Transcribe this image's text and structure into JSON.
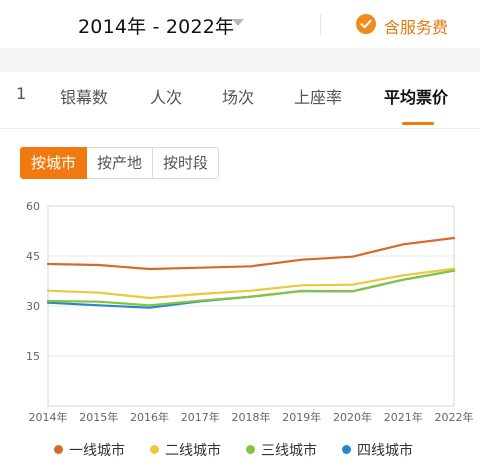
{
  "header": {
    "range_label": "2014年 - 2022年",
    "service_label": "含服务费"
  },
  "tabs": [
    {
      "label": "1"
    },
    {
      "label": "银幕数"
    },
    {
      "label": "人次"
    },
    {
      "label": "场次"
    },
    {
      "label": "上座率"
    },
    {
      "label": "平均票价"
    }
  ],
  "active_tab": "平均票价",
  "segments": [
    {
      "label": "按城市"
    },
    {
      "label": "按产地"
    },
    {
      "label": "按时段"
    }
  ],
  "active_segment": "按城市",
  "colors": {
    "accent": "#f07a10",
    "tier1": "#d9692a",
    "tier2": "#ecc83c",
    "tier3": "#86c43e",
    "tier4": "#2a86c8"
  },
  "chart_data": {
    "type": "line",
    "x": [
      "2014年",
      "2015年",
      "2016年",
      "2017年",
      "2018年",
      "2019年",
      "2020年",
      "2021年",
      "2022年"
    ],
    "y_ticks": [
      15,
      30,
      45,
      60
    ],
    "ylim": [
      0,
      60
    ],
    "series": [
      {
        "name": "一线城市",
        "color": "#d9692a",
        "values": [
          42.6,
          42.3,
          41.1,
          41.5,
          41.9,
          43.9,
          44.8,
          48.5,
          50.4
        ]
      },
      {
        "name": "二线城市",
        "color": "#ecc83c",
        "values": [
          34.6,
          34.0,
          32.4,
          33.6,
          34.6,
          36.2,
          36.4,
          39.2,
          41.2
        ]
      },
      {
        "name": "三线城市",
        "color": "#86c43e",
        "values": [
          31.5,
          31.3,
          30.2,
          31.6,
          32.8,
          34.5,
          34.4,
          37.9,
          40.6
        ]
      },
      {
        "name": "四线城市",
        "color": "#2a86c8",
        "values": [
          31.0,
          30.2,
          29.5,
          31.4,
          32.8,
          34.5,
          34.4,
          37.9,
          40.6
        ]
      }
    ]
  }
}
